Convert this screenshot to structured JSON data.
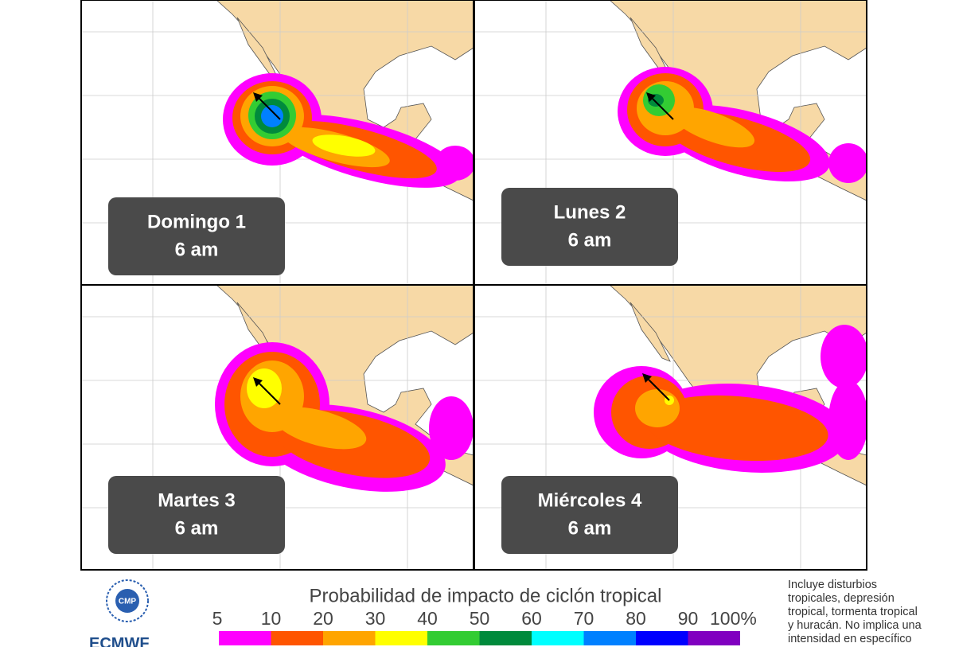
{
  "panels": [
    {
      "day": "Domingo 1",
      "time": "6 am"
    },
    {
      "day": "Lunes 2",
      "time": "6 am"
    },
    {
      "day": "Martes 3",
      "time": "6 am"
    },
    {
      "day": "Miércoles 4",
      "time": "6 am"
    }
  ],
  "legend": {
    "title": "Probabilidad de impacto de ciclón tropical",
    "ticks": [
      "5",
      "10",
      "20",
      "30",
      "40",
      "50",
      "60",
      "70",
      "80",
      "90",
      "100%"
    ],
    "colors": [
      "#ff00ff",
      "#ff5500",
      "#ffa500",
      "#ffff00",
      "#33cc33",
      "#008a3c",
      "#00ffff",
      "#0080ff",
      "#0000ff",
      "#8000c0"
    ]
  },
  "note": [
    "Incluye disturbios",
    "tropicales, depresión",
    "tropical, tormenta tropical",
    "y huracán. No implica una",
    "intensidad en específico"
  ],
  "logos": {
    "cmp": "CMP",
    "ecmwf": "ECMWF"
  }
}
